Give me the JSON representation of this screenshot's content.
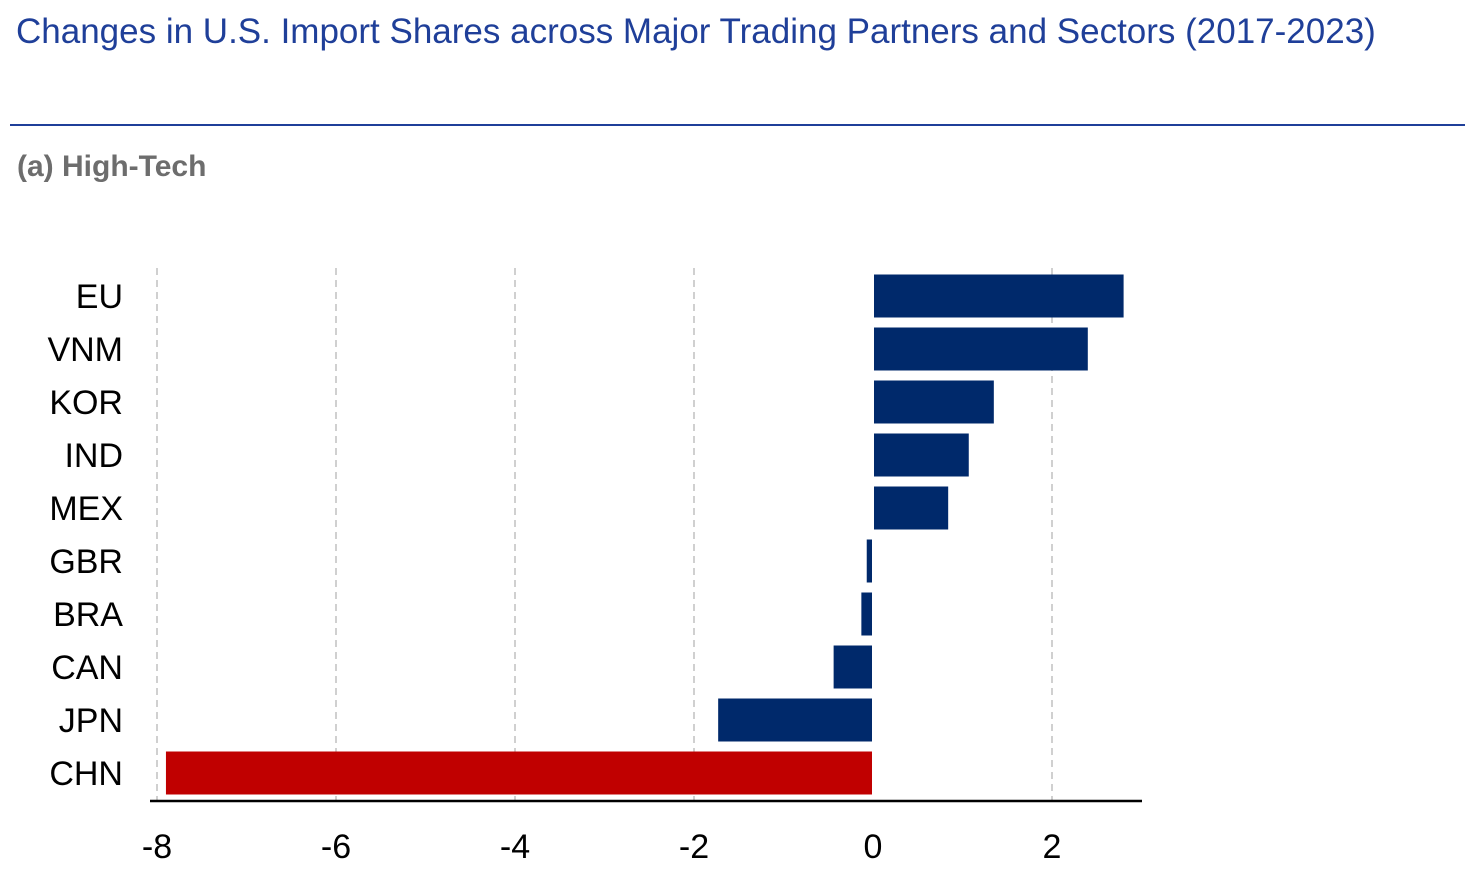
{
  "title": "Changes in U.S. Import Shares across Major Trading Partners and Sectors (2017-2023)",
  "subtitle": "(a) High-Tech",
  "colors": {
    "title": "#1f3f99",
    "bar": "#00296b",
    "highlight": "#c00000",
    "grid": "#d0d0d0",
    "axis": "#000000"
  },
  "chart_data": {
    "type": "bar",
    "orientation": "horizontal",
    "categories": [
      "EU",
      "VNM",
      "KOR",
      "IND",
      "MEX",
      "GBR",
      "BRA",
      "CAN",
      "JPN",
      "CHN"
    ],
    "values": [
      2.8,
      2.4,
      1.35,
      1.07,
      0.84,
      -0.07,
      -0.13,
      -0.44,
      -1.73,
      -7.9
    ],
    "highlight_category": "CHN",
    "xticks": [
      -8,
      -6,
      -4,
      -2,
      0,
      2
    ],
    "xtick_labels": [
      "-8",
      "-6",
      "-4",
      "-2",
      "0",
      "2"
    ],
    "xlim": [
      -8,
      3
    ],
    "xlabel": "",
    "ylabel": "",
    "grid": "vertical dashed",
    "legend": "none"
  }
}
